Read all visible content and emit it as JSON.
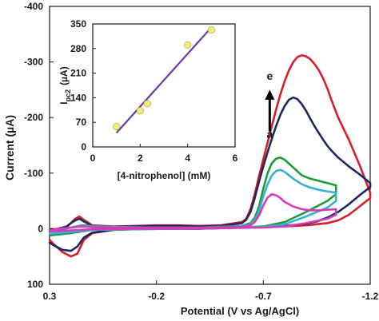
{
  "chart_data": [
    {
      "type": "line",
      "role": "main",
      "xlabel": "Potential  (V vs Ag/AgCl)",
      "ylabel": "Current  (µA)",
      "xlim": [
        0.3,
        -1.2
      ],
      "ylim": [
        100,
        -400
      ],
      "x_reversed": true,
      "y_reversed": true,
      "x_ticks": [
        {
          "value": 0.3,
          "label": "0.3"
        },
        {
          "value": -0.2,
          "label": "-0.2"
        },
        {
          "value": -0.7,
          "label": "-0.7"
        },
        {
          "value": -1.2,
          "label": "-1.2"
        }
      ],
      "y_ticks": [
        {
          "value": -400,
          "label": "-400"
        },
        {
          "value": -300,
          "label": "-300"
        },
        {
          "value": -200,
          "label": "-200"
        },
        {
          "value": -100,
          "label": "-100"
        },
        {
          "value": 0,
          "label": "0"
        },
        {
          "value": 100,
          "label": "100"
        }
      ],
      "grid": false,
      "annotations": [
        {
          "text": "e",
          "x": -0.73,
          "y": -268
        },
        {
          "text": "a",
          "x": -0.73,
          "y": -163
        }
      ],
      "series": [
        {
          "color": "#d81e2a",
          "x": [
            0.3,
            0.26,
            0.22,
            0.2,
            0.18,
            0.16,
            0.14,
            0.1,
            0.0,
            -0.1,
            -0.2,
            -0.3,
            -0.4,
            -0.5,
            -0.6,
            -0.62,
            -0.64,
            -0.66,
            -0.68,
            -0.7,
            -0.72,
            -0.74,
            -0.76,
            -0.78,
            -0.8,
            -0.82,
            -0.84,
            -0.86,
            -0.88,
            -0.9,
            -0.92,
            -0.94,
            -0.96,
            -0.98,
            -1.0,
            -1.02,
            -1.05,
            -1.1,
            -1.15,
            -1.2,
            -1.2,
            -1.15,
            -1.1,
            -1.05,
            -1.0,
            -0.95,
            -0.9,
            -0.8,
            -0.7,
            -0.6,
            -0.5,
            -0.4,
            -0.3,
            -0.2,
            -0.1,
            0.0,
            0.1,
            0.14,
            0.17,
            0.2,
            0.24,
            0.28,
            0.3
          ],
          "y": [
            4,
            2,
            -3,
            -10,
            -18,
            -22,
            -16,
            -6,
            -4,
            -5,
            -6,
            -6,
            -5,
            -6,
            -12,
            -18,
            -35,
            -62,
            -95,
            -125,
            -155,
            -185,
            -215,
            -242,
            -266,
            -285,
            -300,
            -309,
            -312,
            -310,
            -305,
            -296,
            -285,
            -270,
            -252,
            -230,
            -200,
            -160,
            -115,
            -65,
            -55,
            -40,
            -25,
            -15,
            -10,
            -8,
            -6,
            -4,
            -3,
            -2,
            -1,
            0,
            0,
            0,
            1,
            2,
            8,
            20,
            45,
            50,
            42,
            28,
            20
          ]
        },
        {
          "color": "#1b2a5e",
          "x": [
            0.3,
            0.26,
            0.22,
            0.2,
            0.18,
            0.16,
            0.14,
            0.1,
            0.0,
            -0.1,
            -0.2,
            -0.3,
            -0.4,
            -0.5,
            -0.6,
            -0.62,
            -0.64,
            -0.66,
            -0.68,
            -0.7,
            -0.72,
            -0.74,
            -0.76,
            -0.78,
            -0.8,
            -0.82,
            -0.84,
            -0.86,
            -0.88,
            -0.9,
            -0.92,
            -0.94,
            -0.96,
            -0.98,
            -1.0,
            -1.02,
            -1.05,
            -1.1,
            -1.15,
            -1.2,
            -1.2,
            -1.15,
            -1.1,
            -1.05,
            -1.0,
            -0.95,
            -0.9,
            -0.8,
            -0.7,
            -0.6,
            -0.5,
            -0.4,
            -0.3,
            -0.2,
            -0.1,
            0.0,
            0.1,
            0.14,
            0.17,
            0.2,
            0.24,
            0.28,
            0.3
          ],
          "y": [
            2,
            0,
            -4,
            -10,
            -15,
            -18,
            -13,
            -5,
            -3,
            -4,
            -5,
            -5,
            -4,
            -5,
            -10,
            -16,
            -30,
            -55,
            -85,
            -112,
            -138,
            -162,
            -185,
            -205,
            -221,
            -232,
            -236,
            -233,
            -224,
            -212,
            -198,
            -184,
            -172,
            -160,
            -149,
            -140,
            -128,
            -112,
            -98,
            -82,
            -75,
            -60,
            -44,
            -30,
            -20,
            -13,
            -9,
            -5,
            -3,
            -2,
            -1,
            0,
            0,
            0,
            1,
            2,
            7,
            16,
            32,
            40,
            38,
            30,
            25
          ]
        },
        {
          "color": "#1e9a3a",
          "x": [
            0.3,
            0.25,
            0.2,
            0.15,
            0.1,
            0.0,
            -0.2,
            -0.4,
            -0.6,
            -0.64,
            -0.66,
            -0.68,
            -0.7,
            -0.72,
            -0.74,
            -0.76,
            -0.78,
            -0.8,
            -0.84,
            -0.88,
            -0.92,
            -0.96,
            -1.0,
            -1.04,
            -1.04,
            -1.0,
            -0.9,
            -0.8,
            -0.7,
            -0.5,
            -0.3,
            -0.1,
            0.1,
            0.2,
            0.3
          ],
          "y": [
            3,
            2,
            -2,
            -6,
            -5,
            -3,
            -2,
            -2,
            -5,
            -10,
            -20,
            -40,
            -72,
            -100,
            -118,
            -126,
            -128,
            -124,
            -110,
            -96,
            -90,
            -86,
            -82,
            -78,
            -62,
            -50,
            -30,
            -12,
            -4,
            -1,
            0,
            1,
            2,
            8,
            12
          ]
        },
        {
          "color": "#33b3d0",
          "x": [
            0.3,
            0.25,
            0.2,
            0.15,
            0.1,
            0.0,
            -0.2,
            -0.4,
            -0.6,
            -0.64,
            -0.66,
            -0.68,
            -0.7,
            -0.72,
            -0.74,
            -0.76,
            -0.78,
            -0.8,
            -0.84,
            -0.88,
            -0.92,
            -0.96,
            -1.0,
            -1.04,
            -1.04,
            -1.0,
            -0.9,
            -0.8,
            -0.7,
            -0.5,
            -0.3,
            -0.1,
            0.1,
            0.2,
            0.3
          ],
          "y": [
            2,
            1,
            -2,
            -5,
            -4,
            -3,
            -2,
            -2,
            -4,
            -8,
            -16,
            -32,
            -58,
            -80,
            -96,
            -104,
            -106,
            -102,
            -90,
            -80,
            -74,
            -70,
            -67,
            -65,
            -50,
            -38,
            -22,
            -8,
            -3,
            -1,
            0,
            1,
            2,
            6,
            9
          ]
        },
        {
          "color": "#d63ab8",
          "x": [
            0.3,
            0.25,
            0.2,
            0.15,
            0.1,
            0.0,
            -0.2,
            -0.4,
            -0.6,
            -0.64,
            -0.66,
            -0.68,
            -0.7,
            -0.72,
            -0.74,
            -0.76,
            -0.78,
            -0.8,
            -0.84,
            -0.88,
            -0.92,
            -0.96,
            -1.0,
            -1.04,
            -1.04,
            -1.0,
            -0.9,
            -0.8,
            -0.7,
            -0.5,
            -0.3,
            -0.1,
            0.1,
            0.2,
            0.3
          ],
          "y": [
            1,
            0,
            -2,
            -4,
            -3,
            -2,
            -2,
            -2,
            -3,
            -6,
            -12,
            -24,
            -42,
            -56,
            -62,
            -60,
            -55,
            -48,
            -40,
            -35,
            -33,
            -33,
            -34,
            -35,
            -25,
            -18,
            -10,
            -4,
            -2,
            -1,
            0,
            0,
            1,
            3,
            5
          ]
        }
      ]
    },
    {
      "type": "scatter",
      "role": "inset",
      "xlabel": "[4-nitrophenol]  (mM)",
      "ylabel": "Iₚ₌₂  (µA)",
      "ylabel_main": "I",
      "ylabel_sub": "pc2",
      "ylabel_unit": "(µA)",
      "xlim": [
        0,
        6
      ],
      "ylim": [
        0,
        350
      ],
      "x_ticks": [
        {
          "value": 0,
          "label": "0"
        },
        {
          "value": 2,
          "label": "2"
        },
        {
          "value": 4,
          "label": "4"
        },
        {
          "value": 6,
          "label": "6"
        }
      ],
      "y_ticks": [
        {
          "value": 0,
          "label": "0"
        },
        {
          "value": 70,
          "label": "70"
        },
        {
          "value": 140,
          "label": "140"
        },
        {
          "value": 210,
          "label": "210"
        },
        {
          "value": 280,
          "label": "280"
        },
        {
          "value": 350,
          "label": "350"
        }
      ],
      "point_color": "#f3ee7a",
      "line_color": "#6a3aa8",
      "points": [
        {
          "x": 1.0,
          "y": 58
        },
        {
          "x": 2.0,
          "y": 103
        },
        {
          "x": 2.3,
          "y": 123
        },
        {
          "x": 4.0,
          "y": 290
        },
        {
          "x": 5.0,
          "y": 333
        }
      ],
      "fit": {
        "x": [
          1.0,
          5.0
        ],
        "y": [
          40,
          340
        ]
      }
    }
  ],
  "colors": {
    "axis": "#1a1a1a",
    "background": "#ffffff"
  }
}
